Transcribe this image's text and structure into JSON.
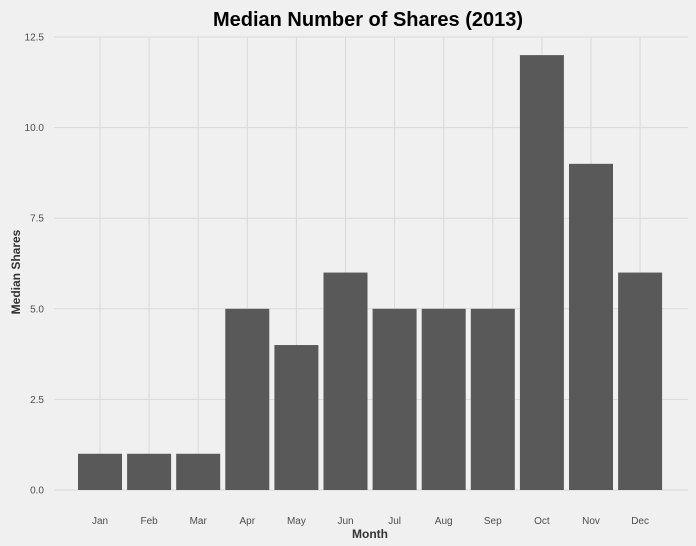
{
  "chart_data": {
    "type": "bar",
    "title": "Median Number of Shares (2013)",
    "xlabel": "Month",
    "ylabel": "Median Shares",
    "categories": [
      "Jan",
      "Feb",
      "Mar",
      "Apr",
      "May",
      "Jun",
      "Jul",
      "Aug",
      "Sep",
      "Oct",
      "Nov",
      "Dec"
    ],
    "values": [
      1,
      1,
      1,
      5,
      4,
      6,
      5,
      5,
      5,
      12,
      9,
      6
    ],
    "ylim": [
      0,
      12.5
    ],
    "yticks": [
      "0.0",
      "2.5",
      "5.0",
      "7.5",
      "10.0",
      "12.5"
    ],
    "grid": true,
    "legend": "none",
    "colors": {
      "background": "#f0f0f0",
      "bar": "#595959",
      "grid": "#d9d9d9"
    }
  }
}
